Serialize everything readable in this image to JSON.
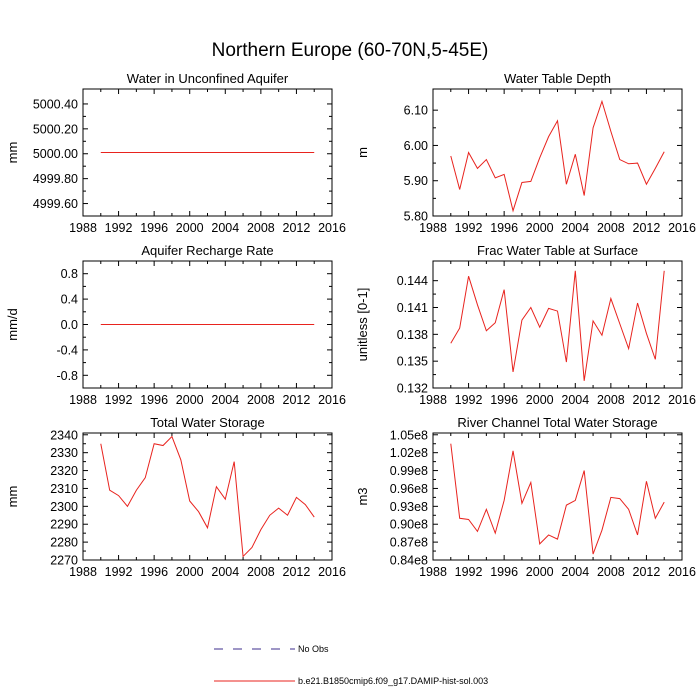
{
  "figure": {
    "title": "Northern Europe (60-70N,5-45E)"
  },
  "legend": {
    "entries": [
      {
        "label": "No Obs",
        "color": "#3c2d8c",
        "dash": true
      },
      {
        "label": "b.e21.B1850cmip6.f09_g17.DAMIP-hist-sol.003",
        "color": "#e8231e",
        "dash": false
      }
    ]
  },
  "colors": {
    "series": "#e8231e",
    "obs": "#3c2d8c"
  },
  "chart_data": [
    {
      "type": "line",
      "title": "Water in Unconfined Aquifer",
      "xlabel": "",
      "ylabel": "mm",
      "xlim": [
        1988,
        2016
      ],
      "ylim": [
        4999.5,
        5000.52
      ],
      "xticks": [
        1988,
        1992,
        1996,
        2000,
        2004,
        2008,
        2012,
        2016
      ],
      "yticks": [
        4999.6,
        4999.8,
        5000.0,
        5000.2,
        5000.4
      ],
      "ytick_labels": [
        "4999.60",
        "4999.80",
        "5000.00",
        "5000.20",
        "5000.40"
      ],
      "x": [
        1990,
        1991,
        1992,
        1993,
        1994,
        1995,
        1996,
        1997,
        1998,
        1999,
        2000,
        2001,
        2002,
        2003,
        2004,
        2005,
        2006,
        2007,
        2008,
        2009,
        2010,
        2011,
        2012,
        2013,
        2014
      ],
      "series": [
        {
          "values": [
            5000.01,
            5000.01,
            5000.01,
            5000.01,
            5000.01,
            5000.01,
            5000.01,
            5000.01,
            5000.01,
            5000.01,
            5000.01,
            5000.01,
            5000.01,
            5000.01,
            5000.01,
            5000.01,
            5000.01,
            5000.01,
            5000.01,
            5000.01,
            5000.01,
            5000.01,
            5000.01,
            5000.01,
            5000.01
          ]
        }
      ]
    },
    {
      "type": "line",
      "title": "Water Table Depth",
      "xlabel": "",
      "ylabel": "m",
      "xlim": [
        1988,
        2016
      ],
      "ylim": [
        5.8,
        6.16
      ],
      "xticks": [
        1988,
        1992,
        1996,
        2000,
        2004,
        2008,
        2012,
        2016
      ],
      "yticks": [
        5.8,
        5.9,
        6.0,
        6.1
      ],
      "ytick_labels": [
        "5.80",
        "5.90",
        "6.00",
        "6.10"
      ],
      "x": [
        1990,
        1991,
        1992,
        1993,
        1994,
        1995,
        1996,
        1997,
        1998,
        1999,
        2000,
        2001,
        2002,
        2003,
        2004,
        2005,
        2006,
        2007,
        2008,
        2009,
        2010,
        2011,
        2012,
        2013,
        2014
      ],
      "series": [
        {
          "values": [
            5.97,
            5.875,
            5.98,
            5.935,
            5.96,
            5.908,
            5.918,
            5.815,
            5.895,
            5.898,
            5.965,
            6.025,
            6.07,
            5.89,
            5.975,
            5.858,
            6.05,
            6.125,
            6.04,
            5.96,
            5.948,
            5.95,
            5.89,
            5.935,
            5.982
          ]
        }
      ]
    },
    {
      "type": "line",
      "title": "Aquifer Recharge Rate",
      "xlabel": "",
      "ylabel": "mm/d",
      "xlim": [
        1988,
        2016
      ],
      "ylim": [
        -1.0,
        1.0
      ],
      "xticks": [
        1988,
        1992,
        1996,
        2000,
        2004,
        2008,
        2012,
        2016
      ],
      "yticks": [
        -0.8,
        -0.4,
        0.0,
        0.4,
        0.8
      ],
      "ytick_labels": [
        "-0.8",
        "-0.4",
        "0.0",
        "0.4",
        "0.8"
      ],
      "x": [
        1990,
        1991,
        1992,
        1993,
        1994,
        1995,
        1996,
        1997,
        1998,
        1999,
        2000,
        2001,
        2002,
        2003,
        2004,
        2005,
        2006,
        2007,
        2008,
        2009,
        2010,
        2011,
        2012,
        2013,
        2014
      ],
      "series": [
        {
          "values": [
            0,
            0,
            0,
            0,
            0,
            0,
            0,
            0,
            0,
            0,
            0,
            0,
            0,
            0,
            0,
            0,
            0,
            0,
            0,
            0,
            0,
            0,
            0,
            0,
            0
          ]
        }
      ]
    },
    {
      "type": "line",
      "title": "Frac Water Table at Surface",
      "xlabel": "",
      "ylabel": "unitless [0-1]",
      "xlim": [
        1988,
        2016
      ],
      "ylim": [
        0.132,
        0.1462
      ],
      "xticks": [
        1988,
        1992,
        1996,
        2000,
        2004,
        2008,
        2012,
        2016
      ],
      "yticks": [
        0.132,
        0.135,
        0.138,
        0.141,
        0.144
      ],
      "ytick_labels": [
        "0.132",
        "0.135",
        "0.138",
        "0.141",
        "0.144"
      ],
      "x": [
        1990,
        1991,
        1992,
        1993,
        1994,
        1995,
        1996,
        1997,
        1998,
        1999,
        2000,
        2001,
        2002,
        2003,
        2004,
        2005,
        2006,
        2007,
        2008,
        2009,
        2010,
        2011,
        2012,
        2013,
        2014
      ],
      "series": [
        {
          "values": [
            0.137,
            0.1387,
            0.1445,
            0.1413,
            0.1384,
            0.1393,
            0.143,
            0.1338,
            0.1396,
            0.141,
            0.1388,
            0.1409,
            0.1406,
            0.1349,
            0.1451,
            0.1328,
            0.1395,
            0.1379,
            0.142,
            0.1392,
            0.1364,
            0.1415,
            0.1381,
            0.1352,
            0.1451
          ]
        }
      ]
    },
    {
      "type": "line",
      "title": "Total Water Storage",
      "xlabel": "",
      "ylabel": "mm",
      "xlim": [
        1988,
        2016
      ],
      "ylim": [
        2270,
        2341
      ],
      "xticks": [
        1988,
        1992,
        1996,
        2000,
        2004,
        2008,
        2012,
        2016
      ],
      "yticks": [
        2270,
        2280,
        2290,
        2300,
        2310,
        2320,
        2330,
        2340
      ],
      "ytick_labels": [
        "2270",
        "2280",
        "2290",
        "2300",
        "2310",
        "2320",
        "2330",
        "2340"
      ],
      "x": [
        1990,
        1991,
        1992,
        1993,
        1994,
        1995,
        1996,
        1997,
        1998,
        1999,
        2000,
        2001,
        2002,
        2003,
        2004,
        2005,
        2006,
        2007,
        2008,
        2009,
        2010,
        2011,
        2012,
        2013,
        2014
      ],
      "series": [
        {
          "values": [
            2335,
            2309,
            2306,
            2300,
            2309,
            2316,
            2335,
            2334,
            2339,
            2326,
            2303,
            2297,
            2288,
            2311,
            2304,
            2325,
            2272,
            2277,
            2287,
            2295,
            2299,
            2295,
            2305,
            2301,
            2294
          ]
        }
      ]
    },
    {
      "type": "line",
      "title": "River Channel Total Water Storage",
      "xlabel": "",
      "ylabel": "m3",
      "xlim": [
        1988,
        2016
      ],
      "ylim": [
        84000000.0,
        105300000.0
      ],
      "xticks": [
        1988,
        1992,
        1996,
        2000,
        2004,
        2008,
        2012,
        2016
      ],
      "yticks": [
        84000000.0,
        87000000.0,
        90000000.0,
        93000000.0,
        96000000.0,
        99000000.0,
        102000000.0,
        105000000.0
      ],
      "ytick_labels": [
        "0.84e8",
        "0.87e8",
        "0.90e8",
        "0.93e8",
        "0.96e8",
        "0.99e8",
        "1.02e8",
        "1.05e8"
      ],
      "x": [
        1990,
        1991,
        1992,
        1993,
        1994,
        1995,
        1996,
        1997,
        1998,
        1999,
        2000,
        2001,
        2002,
        2003,
        2004,
        2005,
        2006,
        2007,
        2008,
        2009,
        2010,
        2011,
        2012,
        2013,
        2014
      ],
      "series": [
        {
          "values": [
            103500000.0,
            91000000.0,
            90800000.0,
            88800000.0,
            92500000.0,
            88500000.0,
            94000000.0,
            102300000.0,
            93500000.0,
            97000000.0,
            86700000.0,
            88200000.0,
            87500000.0,
            93200000.0,
            94000000.0,
            99000000.0,
            85000000.0,
            89000000.0,
            94500000.0,
            94300000.0,
            92500000.0,
            88200000.0,
            97200000.0,
            91000000.0,
            93700000.0
          ]
        }
      ]
    }
  ]
}
